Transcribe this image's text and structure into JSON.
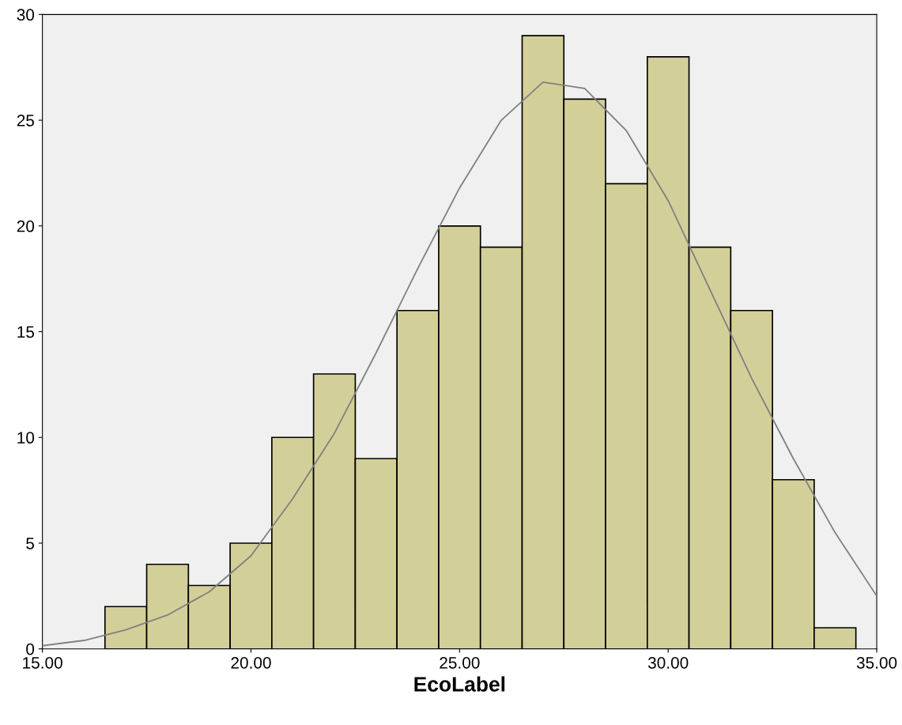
{
  "chart_data": {
    "type": "histogram",
    "xlabel": "EcoLabel",
    "bins": [
      16.5,
      17.5,
      18.5,
      19.5,
      20.5,
      21.5,
      22.5,
      23.5,
      24.5,
      25.5,
      26.5,
      27.5,
      28.5,
      29.5,
      30.5,
      31.5,
      32.5,
      33.5,
      34.5
    ],
    "values": [
      2,
      4,
      3,
      5,
      10,
      13,
      9,
      16,
      20,
      19,
      29,
      26,
      22,
      28,
      19,
      16,
      8,
      1
    ],
    "color": "#d3cf98",
    "series": [
      {
        "type": "line",
        "color": "#808080",
        "x": [
          15,
          16,
          17,
          18,
          19,
          20,
          21,
          22,
          23,
          24,
          25,
          26,
          27,
          28,
          29,
          30,
          31,
          32,
          33,
          34,
          35
        ],
        "values": [
          0.15,
          0.4,
          0.9,
          1.6,
          2.7,
          4.4,
          7.1,
          10.2,
          14,
          18,
          21.8,
          25,
          26.8,
          26.5,
          24.5,
          21.2,
          17,
          12.8,
          9,
          5.5,
          2.5
        ]
      }
    ],
    "xlim": [
      15,
      35
    ],
    "xticks": [
      {
        "value": 15,
        "label": "15.00"
      },
      {
        "value": 20,
        "label": "20.00"
      },
      {
        "value": 25,
        "label": "25.00"
      },
      {
        "value": 30,
        "label": "30.00"
      },
      {
        "value": 35,
        "label": "35.00"
      }
    ],
    "ylim": [
      0,
      30
    ],
    "yticks": [
      0,
      5,
      10,
      15,
      20,
      25,
      30
    ],
    "grid": false
  }
}
